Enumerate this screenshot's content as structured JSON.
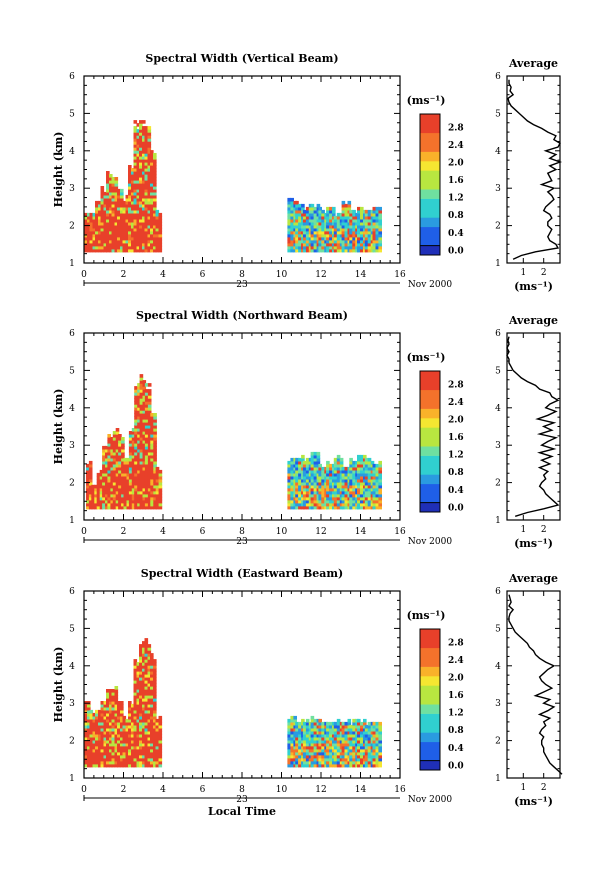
{
  "chart_data": [
    {
      "type": "heatmap",
      "title": "Spectral Width (Vertical Beam)",
      "ylabel": "Height (km)",
      "xlim": [
        0,
        16
      ],
      "ylim": [
        1,
        6
      ],
      "x_ticks": [
        "0",
        "2",
        "4",
        "6",
        "8",
        "10",
        "12",
        "14",
        "16"
      ],
      "y_ticks": [
        "1",
        "2",
        "3",
        "4",
        "5",
        "6"
      ],
      "date_day": "23",
      "date_month": "Nov 2000",
      "colorbar": {
        "label": "(ms⁻¹)",
        "ticks": [
          "0.0",
          "0.4",
          "0.8",
          "1.2",
          "1.6",
          "2.0",
          "2.4",
          "2.8"
        ],
        "max": 3.0
      },
      "data_regions": [
        {
          "x_start": 0.0,
          "x_end": 3.9,
          "tops": [
            2.3,
            2.3,
            2.7,
            3.0,
            3.4,
            3.4,
            3.0,
            2.7,
            3.6,
            4.7,
            4.8,
            4.7,
            4.0,
            2.4
          ],
          "high_fraction": 0.75
        },
        {
          "x_start": 10.3,
          "x_end": 15.0,
          "tops": [
            2.7,
            2.6,
            2.5,
            2.5,
            2.4,
            2.5,
            2.3,
            2.6,
            2.4,
            2.5,
            2.4,
            2.5
          ],
          "high_fraction": 0.15
        }
      ],
      "average_profile": {
        "title": "Average",
        "xlabel": "(ms⁻¹)",
        "x_ticks": [
          "1",
          "2"
        ],
        "xlim": [
          0.2,
          2.8
        ],
        "height": [
          1.1,
          1.2,
          1.3,
          1.4,
          1.5,
          1.6,
          1.7,
          1.8,
          1.9,
          2.0,
          2.1,
          2.2,
          2.3,
          2.4,
          2.5,
          2.6,
          2.7,
          2.8,
          2.9,
          3.0,
          3.1,
          3.2,
          3.3,
          3.4,
          3.5,
          3.6,
          3.7,
          3.8,
          3.9,
          4.0,
          4.1,
          4.2,
          4.3,
          4.4,
          4.5,
          4.6,
          4.7,
          4.8,
          4.9,
          5.0,
          5.1,
          5.2,
          5.3,
          5.4,
          5.5,
          5.6,
          5.7,
          5.8,
          5.9
        ],
        "width": [
          0.5,
          0.9,
          1.6,
          2.7,
          2.6,
          2.3,
          2.2,
          2.3,
          2.4,
          2.2,
          2.2,
          2.4,
          2.3,
          2.0,
          2.1,
          2.3,
          2.5,
          2.4,
          2.2,
          2.5,
          1.9,
          2.4,
          2.3,
          2.2,
          2.6,
          2.3,
          2.8,
          2.3,
          2.6,
          2.1,
          2.7,
          2.8,
          2.5,
          2.6,
          2.2,
          1.9,
          1.5,
          1.2,
          1.0,
          0.8,
          0.6,
          0.4,
          0.3,
          0.25,
          0.5,
          0.35,
          0.4,
          0.3,
          0.3
        ]
      }
    },
    {
      "type": "heatmap",
      "title": "Spectral Width (Northward Beam)",
      "ylabel": "Height (km)",
      "xlim": [
        0,
        16
      ],
      "ylim": [
        1,
        6
      ],
      "x_ticks": [
        "0",
        "2",
        "4",
        "6",
        "8",
        "10",
        "12",
        "14",
        "16"
      ],
      "y_ticks": [
        "1",
        "2",
        "3",
        "4",
        "5",
        "6"
      ],
      "date_day": "23",
      "date_month": "Nov 2000",
      "colorbar": {
        "label": "(ms⁻¹)",
        "ticks": [
          "0.0",
          "0.4",
          "0.8",
          "1.2",
          "1.6",
          "2.0",
          "2.4",
          "2.8"
        ],
        "max": 3.0
      },
      "data_regions": [
        {
          "x_start": 0.1,
          "x_end": 3.9,
          "tops": [
            2.6,
            2.0,
            2.3,
            3.0,
            3.3,
            3.4,
            3.2,
            2.6,
            3.4,
            4.6,
            4.9,
            4.6,
            3.8,
            2.4
          ],
          "high_fraction": 0.7
        },
        {
          "x_start": 10.3,
          "x_end": 15.0,
          "tops": [
            2.6,
            2.7,
            2.6,
            2.8,
            2.5,
            2.5,
            2.7,
            2.4,
            2.6,
            2.7,
            2.6,
            2.5
          ],
          "high_fraction": 0.12
        }
      ],
      "average_profile": {
        "title": "Average",
        "xlabel": "(ms⁻¹)",
        "x_ticks": [
          "1",
          "2"
        ],
        "xlim": [
          0.2,
          2.8
        ],
        "height": [
          1.1,
          1.2,
          1.3,
          1.4,
          1.5,
          1.6,
          1.7,
          1.8,
          1.9,
          2.0,
          2.1,
          2.2,
          2.3,
          2.4,
          2.5,
          2.6,
          2.7,
          2.8,
          2.9,
          3.0,
          3.1,
          3.2,
          3.3,
          3.4,
          3.5,
          3.6,
          3.7,
          3.8,
          3.9,
          4.0,
          4.1,
          4.2,
          4.3,
          4.4,
          4.5,
          4.6,
          4.7,
          4.8,
          4.9,
          5.0,
          5.1,
          5.2,
          5.3,
          5.4,
          5.5,
          5.6,
          5.7,
          5.8,
          5.9
        ],
        "width": [
          0.6,
          1.2,
          2.0,
          2.7,
          2.5,
          2.3,
          2.1,
          2.0,
          1.8,
          1.9,
          2.1,
          2.0,
          2.2,
          1.8,
          2.3,
          1.9,
          2.4,
          1.8,
          2.5,
          1.9,
          2.2,
          2.6,
          1.8,
          2.4,
          2.0,
          2.5,
          1.7,
          2.2,
          2.6,
          2.1,
          2.3,
          2.7,
          2.4,
          2.3,
          1.8,
          1.6,
          1.2,
          0.9,
          0.7,
          0.5,
          0.4,
          0.3,
          0.3,
          0.2,
          0.3,
          0.2,
          0.3,
          0.25,
          0.3
        ]
      }
    },
    {
      "type": "heatmap",
      "title": "Spectral Width (Eastward Beam)",
      "ylabel": "Height (km)",
      "xlabel": "Local Time",
      "xlim": [
        0,
        16
      ],
      "ylim": [
        1,
        6
      ],
      "x_ticks": [
        "0",
        "2",
        "4",
        "6",
        "8",
        "10",
        "12",
        "14",
        "16"
      ],
      "y_ticks": [
        "1",
        "2",
        "3",
        "4",
        "5",
        "6"
      ],
      "date_day": "23",
      "date_month": "Nov 2000",
      "colorbar": {
        "label": "(ms⁻¹)",
        "ticks": [
          "0.0",
          "0.4",
          "0.8",
          "1.2",
          "1.6",
          "2.0",
          "2.4",
          "2.8"
        ],
        "max": 3.0
      },
      "data_regions": [
        {
          "x_start": 0.0,
          "x_end": 3.9,
          "tops": [
            3.0,
            2.7,
            2.8,
            3.0,
            3.3,
            3.4,
            3.1,
            2.6,
            3.0,
            4.2,
            4.6,
            4.7,
            4.3,
            2.6
          ],
          "high_fraction": 0.7
        },
        {
          "x_start": 10.3,
          "x_end": 15.0,
          "tops": [
            2.6,
            2.5,
            2.5,
            2.6,
            2.5,
            2.5,
            2.5,
            2.5,
            2.5,
            2.5,
            2.5,
            2.5
          ],
          "high_fraction": 0.15
        }
      ],
      "average_profile": {
        "title": "Average",
        "xlabel": "(ms⁻¹)",
        "x_ticks": [
          "1",
          "2"
        ],
        "xlim": [
          0.2,
          2.8
        ],
        "height": [
          1.1,
          1.2,
          1.3,
          1.4,
          1.5,
          1.6,
          1.7,
          1.8,
          1.9,
          2.0,
          2.1,
          2.2,
          2.3,
          2.4,
          2.5,
          2.6,
          2.7,
          2.8,
          2.9,
          3.0,
          3.1,
          3.2,
          3.3,
          3.4,
          3.5,
          3.6,
          3.7,
          3.8,
          3.9,
          4.0,
          4.1,
          4.2,
          4.3,
          4.4,
          4.5,
          4.6,
          4.7,
          4.8,
          4.9,
          5.0,
          5.1,
          5.2,
          5.3,
          5.4,
          5.5,
          5.6,
          5.7,
          5.8,
          5.9
        ],
        "width": [
          2.9,
          2.7,
          2.5,
          2.3,
          2.2,
          2.1,
          2.0,
          2.0,
          1.9,
          1.9,
          2.0,
          1.8,
          1.9,
          2.1,
          2.0,
          2.3,
          1.8,
          2.2,
          2.5,
          2.0,
          2.3,
          1.6,
          2.0,
          2.4,
          2.1,
          1.9,
          1.8,
          2.0,
          2.2,
          2.5,
          2.1,
          1.8,
          1.6,
          1.5,
          1.3,
          1.2,
          1.0,
          0.8,
          0.6,
          0.5,
          0.4,
          0.3,
          0.3,
          0.35,
          0.5,
          0.3,
          0.4,
          0.35,
          0.3
        ]
      }
    }
  ]
}
